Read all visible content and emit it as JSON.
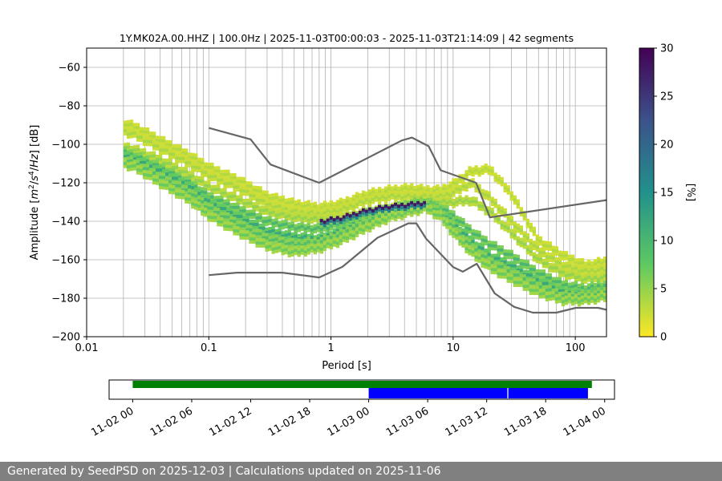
{
  "chart_data": [
    {
      "type": "heatmap",
      "title": "1Y.MK02A.00.HHZ | 100.0Hz | 2025-11-03T00:00:03 - 2025-11-03T21:14:09 | 42 segments",
      "xlabel": "Period [s]",
      "ylabel": "Amplitude [m²/s⁴/Hz] [dB]",
      "xscale": "log",
      "xlim": [
        0.01,
        180
      ],
      "ylim": [
        -200,
        -50
      ],
      "xticks": [
        0.01,
        0.1,
        1,
        10,
        100
      ],
      "xtick_labels": [
        "0.01",
        "0.1",
        "1",
        "10",
        "100"
      ],
      "yticks": [
        -200,
        -180,
        -160,
        -140,
        -120,
        -100,
        -80,
        -60
      ],
      "ytick_labels": [
        "−200",
        "−180",
        "−160",
        "−140",
        "−120",
        "−100",
        "−80",
        "−60"
      ],
      "grid": true,
      "colorbar": {
        "label": "[%]",
        "min": 0,
        "max": 30,
        "ticks": [
          0,
          5,
          10,
          15,
          20,
          25,
          30
        ],
        "tick_labels": [
          "0",
          "5",
          "10",
          "15",
          "20",
          "25",
          "30"
        ],
        "colormap": "viridis_r"
      },
      "noise_models": [
        {
          "name": "high-noise-model",
          "color": "#666666",
          "points": [
            [
              0.1,
              -91.5
            ],
            [
              0.22,
              -97.4
            ],
            [
              0.32,
              -110.5
            ],
            [
              0.8,
              -120
            ],
            [
              3.8,
              -98
            ],
            [
              4.6,
              -96.5
            ],
            [
              6.3,
              -101
            ],
            [
              7.9,
              -113.5
            ],
            [
              15.4,
              -120
            ],
            [
              20,
              -138
            ],
            [
              180,
              -129
            ]
          ]
        },
        {
          "name": "low-noise-model",
          "color": "#666666",
          "points": [
            [
              0.1,
              -168
            ],
            [
              0.17,
              -166.7
            ],
            [
              0.4,
              -166.7
            ],
            [
              0.8,
              -169.2
            ],
            [
              1.24,
              -163.7
            ],
            [
              2.4,
              -148.6
            ],
            [
              4.3,
              -141.1
            ],
            [
              5.0,
              -141.1
            ],
            [
              6.0,
              -149
            ],
            [
              10,
              -163.8
            ],
            [
              12,
              -166.2
            ],
            [
              15.6,
              -162.1
            ],
            [
              21.9,
              -177.5
            ],
            [
              31.6,
              -184.5
            ],
            [
              45,
              -187.5
            ],
            [
              70,
              -187.5
            ],
            [
              101,
              -185
            ],
            [
              154,
              -185
            ],
            [
              180,
              -186
            ]
          ]
        }
      ],
      "psd_bands": [
        {
          "period": [
            0.02,
            0.025,
            0.04,
            0.07,
            0.1,
            0.18,
            0.3,
            0.5,
            0.8,
            1.2,
            2,
            3,
            4.5,
            6,
            8,
            10,
            14,
            20,
            30,
            50,
            80,
            120,
            180
          ],
          "db": [
            -89,
            -91,
            -98,
            -106,
            -112,
            -119,
            -127,
            -131,
            -133,
            -131,
            -126,
            -124,
            -123,
            -124,
            -124,
            -121,
            -114,
            -113,
            -126,
            -150,
            -158,
            -163,
            -161
          ],
          "level": 3.5
        },
        {
          "period": [
            0.02,
            0.025,
            0.04,
            0.07,
            0.1,
            0.18,
            0.3,
            0.5,
            0.8,
            1.2,
            2,
            3,
            4.5,
            6,
            8,
            10,
            14,
            20,
            30,
            50,
            80,
            120,
            180
          ],
          "db": [
            -93,
            -95,
            -102,
            -110,
            -116,
            -123,
            -131,
            -135,
            -136,
            -134,
            -129,
            -127,
            -127,
            -127,
            -127,
            -125,
            -120,
            -128,
            -140,
            -155,
            -163,
            -166,
            -165
          ],
          "level": 4
        },
        {
          "period": [
            0.02,
            0.025,
            0.04,
            0.07,
            0.1,
            0.18,
            0.3,
            0.5,
            0.8,
            1.2,
            2,
            3,
            4.5,
            6,
            8,
            10,
            14,
            20,
            30,
            50,
            80,
            120,
            180
          ],
          "db": [
            -101,
            -103,
            -108,
            -116,
            -122,
            -129,
            -135,
            -138,
            -139,
            -138,
            -135,
            -133,
            -131,
            -130,
            -130,
            -130,
            -129,
            -135,
            -146,
            -160,
            -167,
            -170,
            -169
          ],
          "level": 5
        },
        {
          "period": [
            0.02,
            0.025,
            0.04,
            0.07,
            0.1,
            0.18,
            0.3,
            0.5,
            0.8,
            1.2,
            2,
            3,
            4.5,
            6,
            8,
            10,
            14,
            20,
            30,
            50,
            80,
            120,
            180
          ],
          "db": [
            -104,
            -106,
            -112,
            -120,
            -127,
            -134,
            -140,
            -143,
            -144,
            -141,
            -136,
            -134,
            -131,
            -130,
            -133,
            -137,
            -145,
            -152,
            -158,
            -167,
            -173,
            -175,
            -173
          ],
          "level": 10
        },
        {
          "period": [
            0.02,
            0.025,
            0.04,
            0.07,
            0.1,
            0.18,
            0.3,
            0.5,
            0.8,
            1.2,
            2,
            3,
            4.5,
            6,
            8,
            10,
            14,
            20,
            30,
            50,
            80,
            120,
            180
          ],
          "db": [
            -106,
            -108,
            -114,
            -122,
            -130,
            -138,
            -145,
            -148,
            -149,
            -145,
            -139,
            -135,
            -132,
            -131,
            -135,
            -141,
            -150,
            -158,
            -163,
            -171,
            -177,
            -178,
            -176
          ],
          "level": 12
        },
        {
          "period": [
            0.02,
            0.025,
            0.04,
            0.07,
            0.1,
            0.18,
            0.3,
            0.5,
            0.8,
            1.2,
            2,
            3,
            4.5,
            6,
            8,
            10,
            14,
            20,
            30,
            50,
            80,
            120,
            180
          ],
          "db": [
            -108,
            -110,
            -117,
            -125,
            -133,
            -142,
            -149,
            -152,
            -151,
            -147,
            -140,
            -136,
            -133,
            -131,
            -136,
            -143,
            -153,
            -161,
            -167,
            -174,
            -179,
            -179,
            -177
          ],
          "level": 9
        },
        {
          "period": [
            0.02,
            0.025,
            0.04,
            0.07,
            0.1,
            0.18,
            0.3,
            0.5,
            0.8,
            1.2,
            2,
            3,
            4.5,
            6,
            8,
            10,
            14,
            20,
            30,
            50,
            80,
            120,
            180
          ],
          "db": [
            -110,
            -112,
            -120,
            -129,
            -137,
            -146,
            -153,
            -156,
            -154,
            -150,
            -143,
            -138,
            -135,
            -133,
            -138,
            -146,
            -156,
            -164,
            -170,
            -177,
            -181,
            -181,
            -179
          ],
          "level": 7
        },
        {
          "period": [
            0.8,
            1.2,
            2,
            3,
            4.5,
            6
          ],
          "db": [
            -141,
            -139,
            -135,
            -133,
            -132,
            -131
          ],
          "level": 28
        }
      ]
    },
    {
      "type": "timeline",
      "xtick_labels": [
        "11-02 00",
        "11-02 06",
        "11-02 12",
        "11-02 18",
        "11-03 00",
        "11-03 06",
        "11-03 12",
        "11-03 18",
        "11-04 00"
      ],
      "x_range_hours": [
        -2.4,
        49.0
      ],
      "bars": [
        {
          "name": "data-availability",
          "color": "#008000",
          "start": 0.0,
          "end": 46.7,
          "row": "top"
        },
        {
          "name": "psd-segment-1",
          "color": "#0000ff",
          "start": 24.0,
          "end": 38.1,
          "row": "bottom"
        },
        {
          "name": "psd-segment-2",
          "color": "#0000ff",
          "start": 38.2,
          "end": 46.3,
          "row": "bottom"
        }
      ]
    }
  ],
  "footer": {
    "text": "Generated by SeedPSD on 2025-12-03 | Calculations updated on 2025-11-06"
  }
}
